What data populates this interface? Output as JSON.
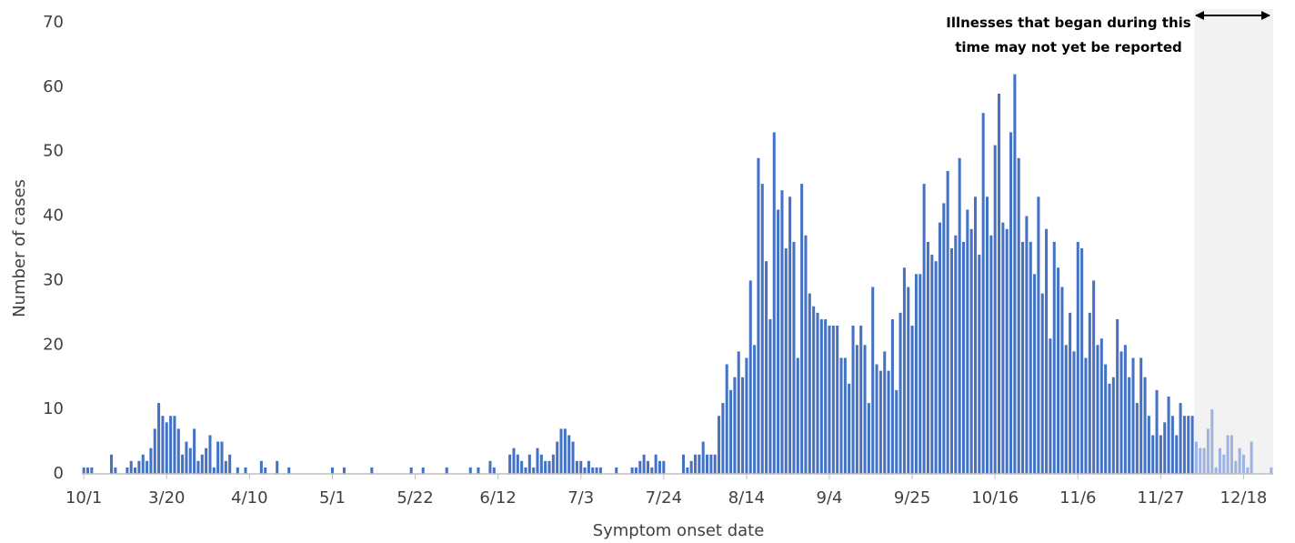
{
  "chart_data": {
    "type": "bar",
    "x_label": "Symptom onset date",
    "y_label": "Number of cases",
    "annotation": "Illnesses that began during this time may not yet be reported",
    "ylim": [
      0,
      70
    ],
    "yticks": [
      0,
      10,
      20,
      30,
      40,
      50,
      60,
      70
    ],
    "categories": [
      "10/1",
      null,
      null,
      null,
      null,
      null,
      null,
      null,
      null,
      null,
      null,
      null,
      null,
      null,
      null,
      null,
      null,
      null,
      null,
      null,
      null,
      "3/20",
      null,
      null,
      null,
      null,
      null,
      null,
      null,
      null,
      null,
      null,
      null,
      null,
      null,
      null,
      null,
      null,
      null,
      null,
      null,
      null,
      "4/10",
      null,
      null,
      null,
      null,
      null,
      null,
      null,
      null,
      null,
      null,
      null,
      null,
      null,
      null,
      null,
      null,
      null,
      null,
      null,
      null,
      "5/1",
      null,
      null,
      null,
      null,
      null,
      null,
      null,
      null,
      null,
      null,
      null,
      null,
      null,
      null,
      null,
      null,
      null,
      null,
      null,
      null,
      "5/22",
      null,
      null,
      null,
      null,
      null,
      null,
      null,
      null,
      null,
      null,
      null,
      null,
      null,
      null,
      null,
      null,
      null,
      null,
      null,
      null,
      "6/12",
      null,
      null,
      null,
      null,
      null,
      null,
      null,
      null,
      null,
      null,
      null,
      null,
      null,
      null,
      null,
      null,
      null,
      null,
      null,
      null,
      "7/3",
      null,
      null,
      null,
      null,
      null,
      null,
      null,
      null,
      null,
      null,
      null,
      null,
      null,
      null,
      null,
      null,
      null,
      null,
      null,
      null,
      "7/24",
      null,
      null,
      null,
      null,
      null,
      null,
      null,
      null,
      null,
      null,
      null,
      null,
      null,
      null,
      null,
      null,
      null,
      null,
      null,
      null,
      "8/14",
      null,
      null,
      null,
      null,
      null,
      null,
      null,
      null,
      null,
      null,
      null,
      null,
      null,
      null,
      null,
      null,
      null,
      null,
      null,
      null,
      "9/4",
      null,
      null,
      null,
      null,
      null,
      null,
      null,
      null,
      null,
      null,
      null,
      null,
      null,
      null,
      null,
      null,
      null,
      null,
      null,
      null,
      "9/25",
      null,
      null,
      null,
      null,
      null,
      null,
      null,
      null,
      null,
      null,
      null,
      null,
      null,
      null,
      null,
      null,
      null,
      null,
      null,
      null,
      "10/16",
      null,
      null,
      null,
      null,
      null,
      null,
      null,
      null,
      null,
      null,
      null,
      null,
      null,
      null,
      null,
      null,
      null,
      null,
      null,
      null,
      "11/6",
      null,
      null,
      null,
      null,
      null,
      null,
      null,
      null,
      null,
      null,
      null,
      null,
      null,
      null,
      null,
      null,
      null,
      null,
      null,
      null,
      "11/27",
      null,
      null,
      null,
      null,
      null,
      null,
      null,
      null,
      null,
      null,
      null,
      null,
      null,
      null,
      null,
      null,
      null,
      null,
      null,
      null,
      "12/18",
      null,
      null,
      null,
      null,
      null,
      null,
      null
    ],
    "series": [
      {
        "color": "#4472c4",
        "values": [
          1,
          1,
          1,
          0,
          0,
          0,
          0,
          3,
          1,
          0,
          0,
          1,
          2,
          1,
          2,
          3,
          2,
          4,
          7,
          11,
          9,
          8,
          9,
          9,
          7,
          3,
          5,
          4,
          7,
          2,
          3,
          4,
          6,
          1,
          5,
          5,
          2,
          3,
          0,
          1,
          0,
          1,
          0,
          0,
          0,
          2,
          1,
          0,
          0,
          2,
          0,
          0,
          1,
          0,
          0,
          0,
          0,
          0,
          0,
          0,
          0,
          0,
          0,
          1,
          0,
          0,
          1,
          0,
          0,
          0,
          0,
          0,
          0,
          1,
          0,
          0,
          0,
          0,
          0,
          0,
          0,
          0,
          0,
          1,
          0,
          0,
          1,
          0,
          0,
          0,
          0,
          0,
          1,
          0,
          0,
          0,
          0,
          0,
          1,
          0,
          1,
          0,
          0,
          2,
          1,
          0,
          0,
          0,
          3,
          4,
          3,
          2,
          1,
          3,
          1,
          4,
          3,
          2,
          2,
          3,
          5,
          7,
          7,
          6,
          5,
          2,
          2,
          1,
          2,
          1,
          1,
          1,
          0,
          0,
          0,
          1,
          0,
          0,
          0,
          1,
          1,
          2,
          3,
          2,
          1,
          3,
          2,
          2,
          0,
          0,
          0,
          0,
          3,
          1,
          2,
          3,
          3,
          5,
          3,
          3,
          3,
          9,
          11,
          17,
          13,
          15,
          19,
          15,
          18,
          30,
          20,
          49,
          45,
          33,
          24,
          53,
          41,
          44,
          35,
          43,
          36,
          18,
          45,
          37,
          28,
          26,
          25,
          24,
          24,
          23,
          23,
          23,
          18,
          18,
          14,
          23,
          20,
          23,
          20,
          11,
          29,
          17,
          16,
          19,
          16,
          24,
          13,
          25,
          32,
          29,
          23,
          31,
          31,
          45,
          36,
          34,
          33,
          39,
          42,
          47,
          35,
          37,
          49,
          36,
          41,
          38,
          43,
          34,
          56,
          43,
          37,
          51,
          59,
          39,
          38,
          53,
          62,
          49,
          36,
          40,
          36,
          31,
          43,
          28,
          38,
          21,
          36,
          32,
          29,
          20,
          25,
          19,
          36,
          35,
          18,
          25,
          30,
          20,
          21,
          17,
          14,
          15,
          24,
          19,
          20,
          15,
          18,
          11,
          18,
          15,
          9,
          6,
          13,
          6,
          8,
          12,
          9,
          6,
          11,
          9,
          9,
          9,
          null,
          null,
          null,
          null,
          null,
          null,
          null,
          null,
          null,
          null,
          null,
          null,
          null,
          null,
          null,
          null,
          null,
          null,
          null,
          null
        ]
      },
      {
        "color": "#9db4e2",
        "values": [
          null,
          null,
          null,
          null,
          null,
          null,
          null,
          null,
          null,
          null,
          null,
          null,
          null,
          null,
          null,
          null,
          null,
          null,
          null,
          null,
          null,
          null,
          null,
          null,
          null,
          null,
          null,
          null,
          null,
          null,
          null,
          null,
          null,
          null,
          null,
          null,
          null,
          null,
          null,
          null,
          null,
          null,
          null,
          null,
          null,
          null,
          null,
          null,
          null,
          null,
          null,
          null,
          null,
          null,
          null,
          null,
          null,
          null,
          null,
          null,
          null,
          null,
          null,
          null,
          null,
          null,
          null,
          null,
          null,
          null,
          null,
          null,
          null,
          null,
          null,
          null,
          null,
          null,
          null,
          null,
          null,
          null,
          null,
          null,
          null,
          null,
          null,
          null,
          null,
          null,
          null,
          null,
          null,
          null,
          null,
          null,
          null,
          null,
          null,
          null,
          null,
          null,
          null,
          null,
          null,
          null,
          null,
          null,
          null,
          null,
          null,
          null,
          null,
          null,
          null,
          null,
          null,
          null,
          null,
          null,
          null,
          null,
          null,
          null,
          null,
          null,
          null,
          null,
          null,
          null,
          null,
          null,
          null,
          null,
          null,
          null,
          null,
          null,
          null,
          null,
          null,
          null,
          null,
          null,
          null,
          null,
          null,
          null,
          null,
          null,
          null,
          null,
          null,
          null,
          null,
          null,
          null,
          null,
          null,
          null,
          null,
          null,
          null,
          null,
          null,
          null,
          null,
          null,
          null,
          null,
          null,
          null,
          null,
          null,
          null,
          null,
          null,
          null,
          null,
          null,
          null,
          null,
          null,
          null,
          null,
          null,
          null,
          null,
          null,
          null,
          null,
          null,
          null,
          null,
          null,
          null,
          null,
          null,
          null,
          null,
          null,
          null,
          null,
          null,
          null,
          null,
          null,
          null,
          null,
          null,
          null,
          null,
          null,
          null,
          null,
          null,
          null,
          null,
          null,
          null,
          null,
          null,
          null,
          null,
          null,
          null,
          null,
          null,
          null,
          null,
          null,
          null,
          null,
          null,
          null,
          null,
          null,
          null,
          null,
          null,
          null,
          null,
          null,
          null,
          null,
          null,
          null,
          null,
          null,
          null,
          null,
          null,
          null,
          null,
          null,
          null,
          null,
          null,
          null,
          null,
          null,
          null,
          null,
          null,
          null,
          null,
          null,
          null,
          null,
          null,
          null,
          null,
          null,
          null,
          null,
          null,
          null,
          null,
          null,
          null,
          null,
          null,
          5,
          4,
          4,
          7,
          10,
          1,
          4,
          3,
          6,
          6,
          2,
          4,
          3,
          1,
          5,
          0,
          0,
          0,
          0,
          1
        ]
      }
    ]
  }
}
